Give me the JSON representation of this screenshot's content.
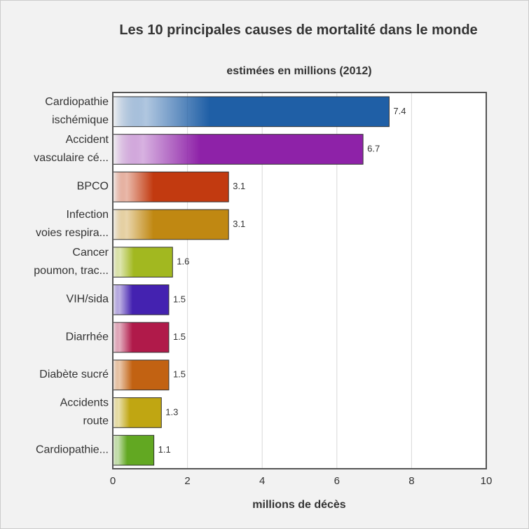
{
  "chart_data": {
    "type": "bar",
    "orientation": "horizontal",
    "title": "Les 10 principales causes de mortalité dans le monde",
    "subtitle": "estimées en millions (2012)",
    "x_label": "millions de décès",
    "categories": [
      [
        "Cardiopathie",
        "ischémique"
      ],
      [
        "Accident",
        "vasculaire cé..."
      ],
      [
        "BPCO"
      ],
      [
        "Infection",
        "voies respira..."
      ],
      [
        "Cancer",
        "poumon, trac..."
      ],
      [
        "VIH/sida"
      ],
      [
        "Diarrhée"
      ],
      [
        "Diabète sucré"
      ],
      [
        "Accidents",
        "route"
      ],
      [
        "Cardiopathie..."
      ]
    ],
    "values": [
      7.4,
      6.7,
      3.1,
      3.1,
      1.6,
      1.5,
      1.5,
      1.5,
      1.3,
      1.1
    ],
    "colors": [
      "#1f5fa6",
      "#8e22a8",
      "#c23a10",
      "#c08812",
      "#a2b820",
      "#4422b0",
      "#b01a4a",
      "#c26212",
      "#c0a612",
      "#62a822"
    ],
    "xlim": [
      0,
      10
    ],
    "xticks": [
      0,
      2,
      4,
      6,
      8,
      10
    ],
    "grid": true
  }
}
